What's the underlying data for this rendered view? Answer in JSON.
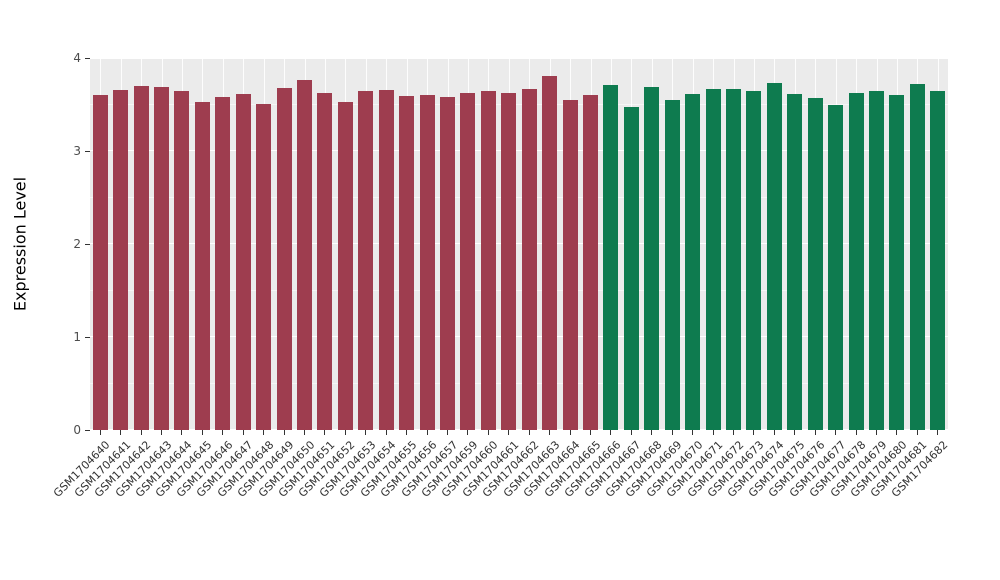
{
  "chart_data": {
    "type": "bar",
    "title": "",
    "xlabel": "",
    "ylabel": "Expression Level",
    "ylim": [
      0,
      4
    ],
    "yticks": [
      0,
      1,
      2,
      3,
      4
    ],
    "grid": "on",
    "legend": "none",
    "panel_background": "#ebebeb",
    "gridline_color": "#ffffff",
    "group_colors": {
      "group1": "#9e3d4f",
      "group2": "#0e7b4f"
    },
    "categories": [
      "GSM1704640",
      "GSM1704641",
      "GSM1704642",
      "GSM1704643",
      "GSM1704644",
      "GSM1704645",
      "GSM1704646",
      "GSM1704647",
      "GSM1704648",
      "GSM1704649",
      "GSM1704650",
      "GSM1704651",
      "GSM1704652",
      "GSM1704653",
      "GSM1704654",
      "GSM1704655",
      "GSM1704656",
      "GSM1704657",
      "GSM1704659",
      "GSM1704660",
      "GSM1704661",
      "GSM1704662",
      "GSM1704663",
      "GSM1704664",
      "GSM1704665",
      "GSM1704666",
      "GSM1704667",
      "GSM1704668",
      "GSM1704669",
      "GSM1704670",
      "GSM1704671",
      "GSM1704672",
      "GSM1704673",
      "GSM1704674",
      "GSM1704675",
      "GSM1704676",
      "GSM1704677",
      "GSM1704678",
      "GSM1704679",
      "GSM1704680",
      "GSM1704681",
      "GSM1704682"
    ],
    "values": [
      3.6,
      3.66,
      3.7,
      3.69,
      3.65,
      3.53,
      3.58,
      3.61,
      3.51,
      3.68,
      3.76,
      3.62,
      3.53,
      3.64,
      3.66,
      3.59,
      3.6,
      3.58,
      3.62,
      3.65,
      3.62,
      3.67,
      3.81,
      3.55,
      3.6,
      3.71,
      3.47,
      3.69,
      3.55,
      3.61,
      3.67,
      3.67,
      3.65,
      3.73,
      3.61,
      3.57,
      3.5,
      3.62,
      3.65,
      3.6,
      3.72,
      3.64
    ],
    "groups": [
      "group1",
      "group1",
      "group1",
      "group1",
      "group1",
      "group1",
      "group1",
      "group1",
      "group1",
      "group1",
      "group1",
      "group1",
      "group1",
      "group1",
      "group1",
      "group1",
      "group1",
      "group1",
      "group1",
      "group1",
      "group1",
      "group1",
      "group1",
      "group1",
      "group1",
      "group2",
      "group2",
      "group2",
      "group2",
      "group2",
      "group2",
      "group2",
      "group2",
      "group2",
      "group2",
      "group2",
      "group2",
      "group2",
      "group2",
      "group2",
      "group2",
      "group2"
    ]
  }
}
